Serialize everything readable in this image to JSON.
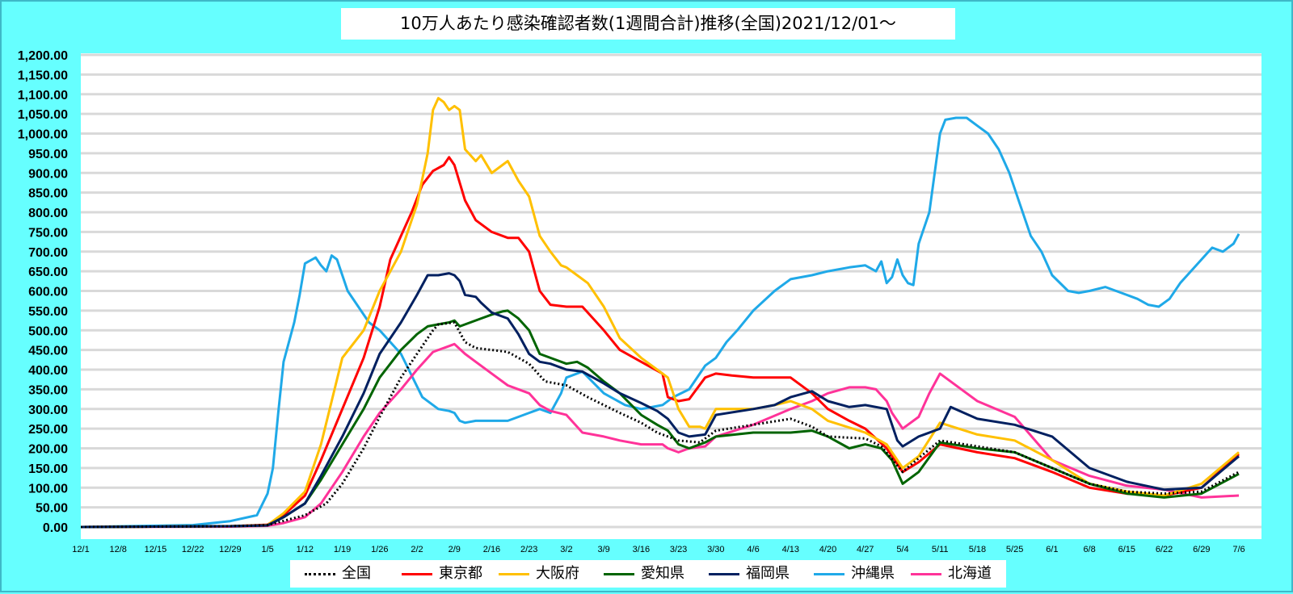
{
  "chart_data": {
    "type": "line",
    "title": "10万人あたり感染確認者数(1週間合計)推移(全国)2021/12/01～",
    "xlabel": "",
    "ylabel": "",
    "ylim": [
      0,
      1200
    ],
    "y_ticks": [
      "0.00",
      "50.00",
      "100.00",
      "150.00",
      "200.00",
      "250.00",
      "300.00",
      "350.00",
      "400.00",
      "450.00",
      "500.00",
      "550.00",
      "600.00",
      "650.00",
      "700.00",
      "750.00",
      "800.00",
      "850.00",
      "900.00",
      "950.00",
      "1,000.00",
      "1,050.00",
      "1,100.00",
      "1,150.00",
      "1,200.00"
    ],
    "x_tick_labels": [
      "12/1",
      "12/8",
      "12/15",
      "12/22",
      "12/29",
      "1/5",
      "1/12",
      "1/19",
      "1/26",
      "2/2",
      "2/9",
      "2/16",
      "2/23",
      "3/2",
      "3/9",
      "3/16",
      "3/23",
      "3/30",
      "4/6",
      "4/13",
      "4/20",
      "4/27",
      "5/4",
      "5/11",
      "5/18",
      "5/25",
      "6/1",
      "6/8",
      "6/15",
      "6/22",
      "6/29",
      "7/6"
    ],
    "x_tick_day": [
      0,
      7,
      14,
      21,
      28,
      35,
      42,
      49,
      56,
      63,
      70,
      77,
      84,
      91,
      98,
      105,
      112,
      119,
      126,
      133,
      140,
      147,
      154,
      161,
      168,
      175,
      182,
      189,
      196,
      203,
      210,
      217
    ],
    "x_dates": [
      "2021-12-01",
      "2022-07-06"
    ],
    "x_days": 217,
    "grid": true,
    "legend_position": "bottom",
    "series": [
      {
        "name": "全国",
        "color": "#000000",
        "style": "dotted",
        "x": [
          0,
          28,
          35,
          42,
          46,
          49,
          53,
          56,
          60,
          63,
          66,
          67,
          70,
          72,
          74,
          77,
          80,
          84,
          87,
          91,
          95,
          98,
          101,
          105,
          108,
          112,
          116,
          119,
          126,
          133,
          137,
          140,
          147,
          150,
          154,
          157,
          161,
          168,
          175,
          182,
          189,
          196,
          203,
          210,
          217
        ],
        "y": [
          0,
          2,
          5,
          30,
          60,
          110,
          200,
          280,
          380,
          440,
          500,
          515,
          520,
          470,
          455,
          450,
          445,
          415,
          370,
          360,
          330,
          310,
          290,
          265,
          240,
          220,
          215,
          245,
          260,
          275,
          255,
          230,
          225,
          205,
          140,
          175,
          220,
          205,
          190,
          150,
          110,
          90,
          85,
          90,
          140
        ]
      },
      {
        "name": "東京都",
        "color": "#ff0000",
        "style": "solid",
        "x": [
          0,
          28,
          35,
          38,
          42,
          45,
          49,
          53,
          56,
          58,
          60,
          62,
          64,
          66,
          68,
          69,
          70,
          72,
          74,
          77,
          80,
          82,
          84,
          86,
          88,
          91,
          94,
          98,
          101,
          105,
          109,
          110,
          112,
          114,
          117,
          119,
          122,
          126,
          133,
          137,
          140,
          144,
          147,
          151,
          154,
          157,
          161,
          168,
          175,
          182,
          189,
          196,
          203,
          210,
          217
        ],
        "y": [
          0,
          2,
          6,
          30,
          80,
          170,
          300,
          430,
          560,
          680,
          740,
          800,
          870,
          905,
          920,
          940,
          920,
          830,
          780,
          750,
          735,
          735,
          700,
          600,
          565,
          560,
          560,
          500,
          450,
          420,
          390,
          330,
          320,
          325,
          380,
          390,
          385,
          380,
          380,
          340,
          300,
          270,
          250,
          200,
          140,
          165,
          210,
          190,
          175,
          140,
          100,
          85,
          80,
          100,
          185
        ]
      },
      {
        "name": "大阪府",
        "color": "#ffc000",
        "style": "solid",
        "x": [
          0,
          28,
          35,
          38,
          42,
          45,
          49,
          53,
          56,
          60,
          63,
          65,
          66,
          67,
          68,
          69,
          70,
          71,
          72,
          74,
          75,
          77,
          79,
          80,
          82,
          84,
          86,
          88,
          90,
          91,
          93,
          95,
          98,
          101,
          105,
          108,
          110,
          112,
          114,
          116,
          117,
          119,
          126,
          130,
          133,
          137,
          140,
          147,
          151,
          154,
          157,
          161,
          168,
          175,
          182,
          189,
          196,
          203,
          210,
          217
        ],
        "y": [
          0,
          2,
          5,
          35,
          90,
          210,
          430,
          500,
          600,
          700,
          820,
          950,
          1060,
          1090,
          1080,
          1060,
          1070,
          1060,
          960,
          930,
          945,
          900,
          920,
          930,
          880,
          840,
          740,
          700,
          665,
          660,
          640,
          620,
          560,
          480,
          430,
          400,
          380,
          300,
          255,
          255,
          250,
          300,
          300,
          310,
          320,
          300,
          270,
          240,
          210,
          150,
          180,
          265,
          235,
          220,
          170,
          110,
          90,
          80,
          110,
          190
        ]
      },
      {
        "name": "愛知県",
        "color": "#006400",
        "style": "solid",
        "x": [
          0,
          28,
          35,
          38,
          42,
          45,
          49,
          53,
          56,
          60,
          63,
          65,
          67,
          69,
          70,
          71,
          73,
          75,
          77,
          79,
          80,
          82,
          84,
          86,
          88,
          91,
          93,
          95,
          98,
          101,
          105,
          108,
          110,
          112,
          114,
          117,
          119,
          126,
          133,
          137,
          140,
          144,
          147,
          150,
          152,
          154,
          157,
          161,
          168,
          175,
          182,
          189,
          196,
          203,
          210,
          217
        ],
        "y": [
          0,
          2,
          4,
          25,
          60,
          120,
          210,
          300,
          380,
          450,
          490,
          510,
          515,
          520,
          525,
          510,
          520,
          530,
          540,
          548,
          550,
          530,
          500,
          440,
          430,
          415,
          420,
          405,
          370,
          340,
          285,
          260,
          245,
          210,
          200,
          215,
          230,
          240,
          240,
          245,
          230,
          200,
          210,
          200,
          170,
          110,
          140,
          215,
          200,
          190,
          150,
          110,
          85,
          75,
          85,
          135
        ]
      },
      {
        "name": "福岡県",
        "color": "#002060",
        "style": "solid",
        "x": [
          0,
          28,
          35,
          38,
          42,
          45,
          49,
          53,
          56,
          60,
          63,
          65,
          67,
          69,
          70,
          71,
          72,
          74,
          75,
          77,
          80,
          82,
          84,
          86,
          88,
          91,
          94,
          98,
          101,
          105,
          108,
          110,
          112,
          114,
          117,
          119,
          126,
          130,
          133,
          137,
          140,
          144,
          147,
          151,
          153,
          154,
          157,
          161,
          163,
          168,
          175,
          182,
          189,
          196,
          203,
          210,
          217
        ],
        "y": [
          0,
          2,
          4,
          25,
          60,
          130,
          230,
          340,
          440,
          520,
          590,
          640,
          640,
          645,
          640,
          625,
          590,
          585,
          570,
          545,
          530,
          490,
          440,
          420,
          415,
          400,
          395,
          365,
          340,
          315,
          295,
          275,
          240,
          230,
          235,
          285,
          300,
          310,
          330,
          345,
          320,
          305,
          310,
          300,
          220,
          205,
          230,
          250,
          305,
          275,
          260,
          230,
          150,
          115,
          95,
          100,
          180
        ]
      },
      {
        "name": "沖縄県",
        "color": "#1fa9e8",
        "style": "solid",
        "x": [
          0,
          21,
          28,
          33,
          35,
          36,
          37,
          38,
          40,
          41,
          42,
          44,
          45,
          46,
          47,
          48,
          50,
          52,
          54,
          56,
          60,
          64,
          67,
          69,
          70,
          71,
          72,
          74,
          77,
          80,
          84,
          86,
          88,
          90,
          91,
          94,
          98,
          102,
          105,
          109,
          111,
          114,
          117,
          119,
          121,
          123,
          126,
          130,
          133,
          137,
          140,
          144,
          147,
          149,
          150,
          151,
          152,
          153,
          154,
          155,
          156,
          157,
          158,
          159,
          160,
          161,
          162,
          164,
          166,
          168,
          170,
          172,
          174,
          176,
          178,
          180,
          182,
          185,
          187,
          189,
          192,
          194,
          196,
          198,
          200,
          202,
          204,
          206,
          208,
          210,
          212,
          214,
          215,
          216,
          217
        ],
        "y": [
          0,
          5,
          15,
          30,
          85,
          150,
          290,
          420,
          520,
          590,
          670,
          685,
          665,
          650,
          690,
          680,
          600,
          560,
          520,
          500,
          440,
          330,
          300,
          295,
          290,
          270,
          265,
          270,
          270,
          270,
          290,
          300,
          290,
          340,
          380,
          395,
          340,
          310,
          300,
          310,
          330,
          350,
          410,
          430,
          470,
          500,
          550,
          600,
          630,
          640,
          650,
          660,
          665,
          650,
          675,
          620,
          635,
          680,
          640,
          620,
          615,
          720,
          760,
          800,
          900,
          1000,
          1035,
          1040,
          1040,
          1020,
          1000,
          960,
          900,
          820,
          740,
          700,
          640,
          600,
          595,
          600,
          610,
          600,
          590,
          580,
          565,
          560,
          580,
          620,
          650,
          680,
          710,
          700,
          710,
          720,
          745
        ]
      },
      {
        "name": "北海道",
        "color": "#ff3399",
        "style": "solid",
        "x": [
          0,
          28,
          35,
          38,
          42,
          45,
          49,
          53,
          56,
          60,
          63,
          66,
          67,
          69,
          70,
          72,
          74,
          77,
          80,
          84,
          86,
          88,
          91,
          94,
          98,
          101,
          105,
          109,
          110,
          112,
          114,
          117,
          119,
          126,
          133,
          137,
          140,
          144,
          147,
          149,
          151,
          152,
          154,
          157,
          159,
          161,
          165,
          168,
          175,
          182,
          189,
          196,
          203,
          210,
          217
        ],
        "y": [
          0,
          1,
          3,
          10,
          25,
          60,
          140,
          230,
          290,
          350,
          400,
          445,
          450,
          460,
          465,
          440,
          420,
          390,
          360,
          340,
          310,
          295,
          285,
          240,
          230,
          220,
          210,
          210,
          200,
          190,
          200,
          205,
          230,
          260,
          300,
          320,
          340,
          355,
          355,
          350,
          320,
          290,
          250,
          280,
          340,
          390,
          350,
          320,
          280,
          170,
          130,
          105,
          95,
          75,
          80
        ]
      }
    ]
  },
  "legend": {
    "items": [
      "全国",
      "東京都",
      "大阪府",
      "愛知県",
      "福岡県",
      "沖縄県",
      "北海道"
    ]
  }
}
